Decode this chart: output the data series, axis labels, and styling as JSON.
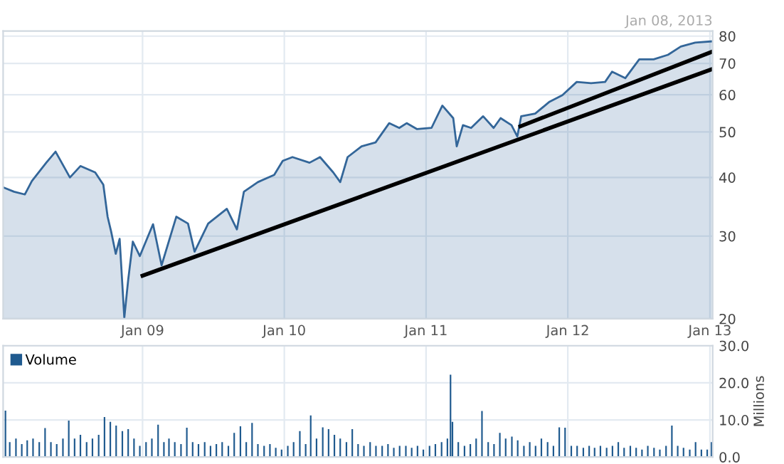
{
  "chart_data": [
    {
      "type": "area",
      "log": true,
      "grid": true,
      "xlim": [
        "2008-01-08",
        "2013-01-08"
      ],
      "ylim": [
        20,
        82
      ],
      "yticks": [
        20,
        30,
        40,
        50,
        60,
        70,
        80
      ],
      "xticks": [
        {
          "value": "2009-01-01",
          "label": "Jan 09"
        },
        {
          "value": "2010-01-01",
          "label": "Jan 10"
        },
        {
          "value": "2011-01-01",
          "label": "Jan 11"
        },
        {
          "value": "2012-01-01",
          "label": "Jan 12"
        },
        {
          "value": "2013-01-01",
          "label": "Jan 13"
        }
      ],
      "annotations": [
        "Jan 08, 2013"
      ],
      "series": [
        {
          "type": "area",
          "color": "#336699",
          "x": [
            "2008-01-08",
            "2008-02-05",
            "2008-03-04",
            "2008-03-22",
            "2008-04-28",
            "2008-05-22",
            "2008-06-28",
            "2008-07-25",
            "2008-09-01",
            "2008-09-22",
            "2008-10-03",
            "2008-10-12",
            "2008-10-24",
            "2008-11-03",
            "2008-11-15",
            "2008-11-25",
            "2008-12-07",
            "2008-12-25",
            "2009-01-28",
            "2009-02-19",
            "2009-03-29",
            "2009-04-28",
            "2009-05-15",
            "2009-06-19",
            "2009-08-06",
            "2009-09-01",
            "2009-09-19",
            "2009-10-25",
            "2009-12-06",
            "2009-12-28",
            "2010-01-22",
            "2010-03-07",
            "2010-04-03",
            "2010-05-07",
            "2010-05-25",
            "2010-06-13",
            "2010-07-19",
            "2010-08-24",
            "2010-09-28",
            "2010-10-24",
            "2010-11-12",
            "2010-12-09",
            "2011-01-15",
            "2011-02-12",
            "2011-03-12",
            "2011-03-21",
            "2011-04-06",
            "2011-04-27",
            "2011-05-28",
            "2011-06-24",
            "2011-07-12",
            "2011-08-09",
            "2011-08-24",
            "2011-09-03",
            "2011-10-09",
            "2011-11-15",
            "2011-12-18",
            "2012-01-24",
            "2012-03-01",
            "2012-04-06",
            "2012-04-24",
            "2012-05-28",
            "2012-07-03",
            "2012-08-09",
            "2012-09-15",
            "2012-10-18",
            "2012-11-24",
            "2013-01-08"
          ],
          "values": [
            38.1,
            37.3,
            36.8,
            39.3,
            43.0,
            45.4,
            40.0,
            42.3,
            41.0,
            38.6,
            33.0,
            30.7,
            27.5,
            29.6,
            20.1,
            24.2,
            29.2,
            27.2,
            31.8,
            26.0,
            33.0,
            31.9,
            27.8,
            31.9,
            34.3,
            31.0,
            37.3,
            39.1,
            40.5,
            43.4,
            44.2,
            43.0,
            44.2,
            41.0,
            39.1,
            44.2,
            46.6,
            47.5,
            52.2,
            51.0,
            52.2,
            50.7,
            51.0,
            56.9,
            53.5,
            46.6,
            51.7,
            51.0,
            54.0,
            51.0,
            53.5,
            51.7,
            48.9,
            54.0,
            54.7,
            58.0,
            59.9,
            63.9,
            63.5,
            63.9,
            67.2,
            65.1,
            71.4,
            71.4,
            73.0,
            76.0,
            77.5,
            78.0
          ]
        },
        {
          "type": "line",
          "color": "#000000",
          "x": [
            "2009-01-01",
            "2013-01-08"
          ],
          "values": [
            24.7,
            68.1
          ]
        },
        {
          "type": "line",
          "color": "#000000",
          "x": [
            "2011-09-01",
            "2013-01-08"
          ],
          "values": [
            51.4,
            74.2
          ]
        }
      ]
    },
    {
      "type": "bar",
      "grid": true,
      "tick_labels": "y",
      "legend": "top left",
      "ylabel": "Millions",
      "xlim": [
        "2008-01-08",
        "2013-01-08"
      ],
      "ylim": [
        0,
        30
      ],
      "yticks": [
        {
          "value": 0,
          "label": "0.0"
        },
        {
          "value": 10,
          "label": "10.0"
        },
        {
          "value": 20,
          "label": "20.0"
        },
        {
          "value": 30,
          "label": "30.0"
        }
      ],
      "xticks": [
        {
          "value": "2009-01-01",
          "label": null
        },
        {
          "value": "2010-01-01",
          "label": null
        },
        {
          "value": "2011-01-01",
          "label": null
        },
        {
          "value": "2012-01-01",
          "label": null
        },
        {
          "value": "2013-01-01",
          "label": null
        }
      ],
      "series": [
        {
          "name": "Volume",
          "color": "#1f5a8f",
          "x": [
            "2008-01-14",
            "2008-01-25",
            "2008-02-10",
            "2008-02-25",
            "2008-03-10",
            "2008-03-25",
            "2008-04-10",
            "2008-04-25",
            "2008-05-10",
            "2008-05-25",
            "2008-06-10",
            "2008-06-25",
            "2008-07-10",
            "2008-07-25",
            "2008-08-10",
            "2008-08-25",
            "2008-09-10",
            "2008-09-25",
            "2008-10-10",
            "2008-10-25",
            "2008-11-10",
            "2008-11-25",
            "2008-12-10",
            "2008-12-25",
            "2009-01-10",
            "2009-01-25",
            "2009-02-10",
            "2009-02-25",
            "2009-03-10",
            "2009-03-25",
            "2009-04-10",
            "2009-04-25",
            "2009-05-10",
            "2009-05-25",
            "2009-06-10",
            "2009-06-25",
            "2009-07-10",
            "2009-07-25",
            "2009-08-10",
            "2009-08-25",
            "2009-09-10",
            "2009-09-25",
            "2009-10-10",
            "2009-10-25",
            "2009-11-10",
            "2009-11-25",
            "2009-12-10",
            "2009-12-25",
            "2010-01-10",
            "2010-01-25",
            "2010-02-10",
            "2010-02-25",
            "2010-03-10",
            "2010-03-25",
            "2010-04-10",
            "2010-04-25",
            "2010-05-10",
            "2010-05-25",
            "2010-06-10",
            "2010-06-25",
            "2010-07-10",
            "2010-07-25",
            "2010-08-10",
            "2010-08-25",
            "2010-09-10",
            "2010-09-25",
            "2010-10-10",
            "2010-10-25",
            "2010-11-10",
            "2010-11-25",
            "2010-12-10",
            "2010-12-25",
            "2011-01-10",
            "2011-01-25",
            "2011-02-10",
            "2011-02-25",
            "2011-03-05",
            "2011-03-10",
            "2011-03-25",
            "2011-04-10",
            "2011-04-25",
            "2011-05-10",
            "2011-05-25",
            "2011-06-10",
            "2011-06-25",
            "2011-07-10",
            "2011-07-25",
            "2011-08-10",
            "2011-08-25",
            "2011-09-10",
            "2011-09-25",
            "2011-10-10",
            "2011-10-25",
            "2011-11-10",
            "2011-11-25",
            "2011-12-10",
            "2011-12-25",
            "2012-01-10",
            "2012-01-25",
            "2012-02-10",
            "2012-02-25",
            "2012-03-10",
            "2012-03-25",
            "2012-04-10",
            "2012-04-25",
            "2012-05-10",
            "2012-05-25",
            "2012-06-10",
            "2012-06-25",
            "2012-07-10",
            "2012-07-25",
            "2012-08-10",
            "2012-08-25",
            "2012-09-10",
            "2012-09-25",
            "2012-10-10",
            "2012-10-25",
            "2012-11-10",
            "2012-11-25",
            "2012-12-10",
            "2012-12-25",
            "2013-01-05"
          ],
          "values": [
            12.5,
            4,
            5,
            3.5,
            4.5,
            5,
            4,
            7.8,
            4,
            3.5,
            5,
            9.8,
            5,
            6,
            4,
            5,
            6,
            10.8,
            9.5,
            8.5,
            7,
            7.5,
            5,
            3,
            4,
            5,
            8.7,
            4,
            5,
            4,
            3.5,
            7.9,
            4,
            3.5,
            4,
            3,
            3.5,
            4,
            3,
            6.5,
            8.3,
            4,
            9.2,
            3.5,
            3,
            3.5,
            2.5,
            2,
            3,
            4,
            7,
            3.5,
            11.2,
            5,
            8,
            7.5,
            6,
            5,
            4,
            7.5,
            3.5,
            3,
            4,
            3,
            3,
            3.5,
            2.5,
            3,
            3,
            2.5,
            3,
            2,
            3,
            3.5,
            4,
            5,
            22.2,
            9.5,
            4,
            3,
            3.5,
            5,
            12.4,
            4,
            3.5,
            6.5,
            5,
            5.5,
            4.5,
            3,
            4,
            3,
            5,
            4,
            3,
            8,
            7.9,
            3,
            3,
            2.5,
            3,
            2.5,
            3,
            2.5,
            3,
            4,
            2.5,
            3,
            2.5,
            2,
            3,
            2.5,
            2,
            3,
            8.5,
            3,
            2.5,
            2,
            4,
            2,
            2,
            4
          ]
        }
      ]
    }
  ]
}
